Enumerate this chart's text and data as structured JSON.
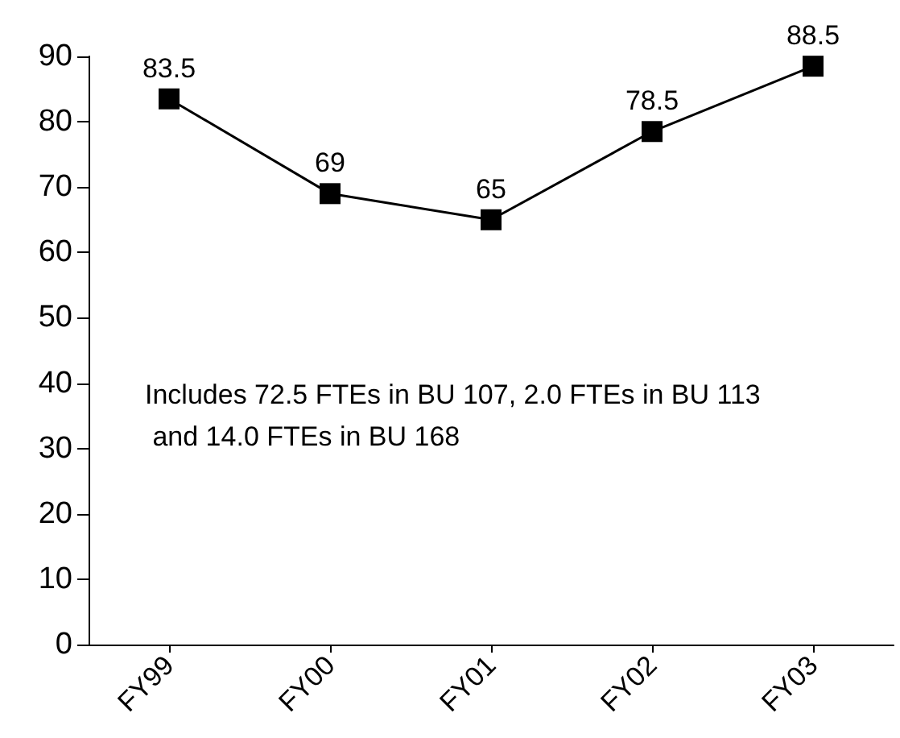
{
  "chart_data": {
    "type": "line",
    "categories": [
      "FY99",
      "FY00",
      "FY01",
      "FY02",
      "FY03"
    ],
    "values": [
      83.5,
      69,
      65,
      78.5,
      88.5
    ],
    "color": "#000000",
    "marker": "square",
    "data_labels": true,
    "grid": false,
    "ylim": [
      0,
      90
    ],
    "yticks": [
      0,
      10,
      20,
      30,
      40,
      50,
      60,
      70,
      80,
      90
    ],
    "annotations": [
      "Includes 72.5 FTEs in BU 107, 2.0 FTEs in BU 113 and 14.0 FTEs in BU 168"
    ]
  }
}
